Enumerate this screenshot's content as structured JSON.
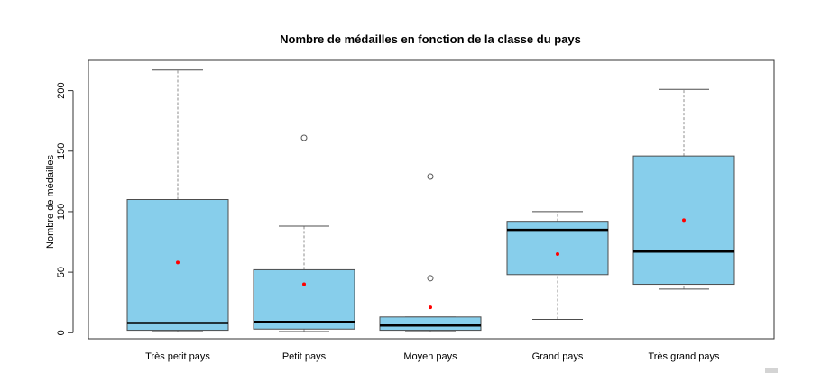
{
  "chart_data": {
    "type": "boxplot",
    "title": "Nombre de médailles en fonction de la classe du pays",
    "xlabel": "",
    "ylabel": "Nombre de médailles",
    "ylim": [
      -5,
      225
    ],
    "yticks": [
      0,
      50,
      100,
      150,
      200
    ],
    "grid": false,
    "legend": "none",
    "categories": [
      "Très petit pays",
      "Petit pays",
      "Moyen pays",
      "Grand pays",
      "Très grand pays"
    ],
    "boxes": [
      {
        "category": "Très petit pays",
        "whisker_low": 1,
        "q1": 2,
        "median": 8,
        "q3": 110,
        "whisker_high": 217,
        "mean": 58,
        "outliers": []
      },
      {
        "category": "Petit pays",
        "whisker_low": 1,
        "q1": 3,
        "median": 9,
        "q3": 52,
        "whisker_high": 88,
        "mean": 40,
        "outliers": [
          161
        ]
      },
      {
        "category": "Moyen pays",
        "whisker_low": 1,
        "q1": 2,
        "median": 6,
        "q3": 13,
        "whisker_high": 13,
        "mean": 21,
        "outliers": [
          45,
          129
        ]
      },
      {
        "category": "Grand pays",
        "whisker_low": 11,
        "q1": 48,
        "median": 85,
        "q3": 92,
        "whisker_high": 100,
        "mean": 65,
        "outliers": []
      },
      {
        "category": "Très grand pays",
        "whisker_low": 36,
        "q1": 40,
        "median": 67,
        "q3": 146,
        "whisker_high": 201,
        "mean": 93,
        "outliers": []
      }
    ],
    "colors": {
      "box_fill": "#87ceeb",
      "box_border": "#4d4d4d",
      "median": "#000000",
      "mean": "#ff0000",
      "whisker": "#8c8c8c"
    }
  }
}
